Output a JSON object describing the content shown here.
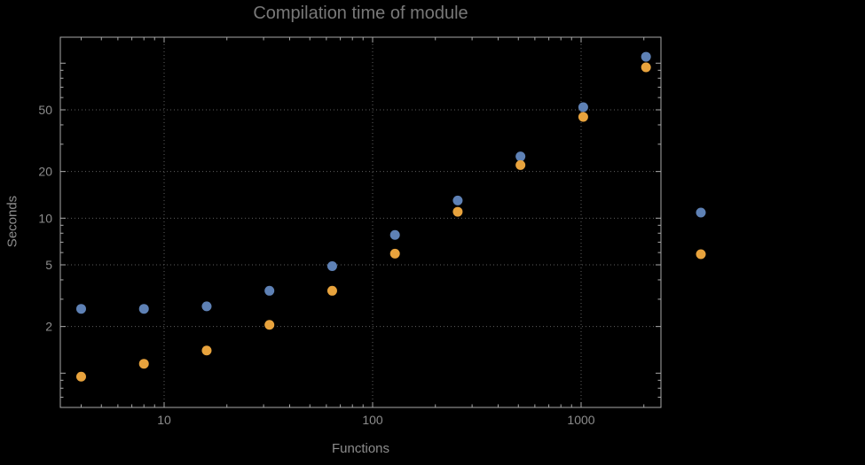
{
  "colors": {
    "background": "#000000",
    "frame": "#a9a9a9",
    "grid": "#5e5e5e",
    "title_text": "#787878",
    "tick_text": "#8c8c8c",
    "axis_label_text": "#8c8c8c",
    "series_blue": "#5E81B5",
    "series_orange": "#E8A33D"
  },
  "chart_data": {
    "type": "scatter",
    "title": "Compilation time of module",
    "xlabel": "Functions",
    "ylabel": "Seconds",
    "xscale": "log",
    "yscale": "log",
    "xlim": [
      3.2,
      2400
    ],
    "ylim": [
      0.6,
      150
    ],
    "x_major_ticks": [
      10,
      100,
      1000
    ],
    "y_major_ticks": [
      2,
      5,
      10,
      20,
      50
    ],
    "grid": "dotted",
    "legend_position": "right-outside",
    "x": [
      4,
      8,
      16,
      32,
      64,
      128,
      256,
      512,
      1024,
      2048
    ],
    "series": [
      {
        "name": "",
        "color": "#5E81B5",
        "values": [
          2.6,
          2.6,
          2.7,
          3.4,
          4.9,
          7.8,
          13,
          25,
          52,
          110
        ]
      },
      {
        "name": "",
        "color": "#E8A33D",
        "values": [
          0.95,
          1.15,
          1.4,
          2.05,
          3.4,
          5.9,
          11,
          22,
          45,
          94
        ]
      }
    ]
  }
}
